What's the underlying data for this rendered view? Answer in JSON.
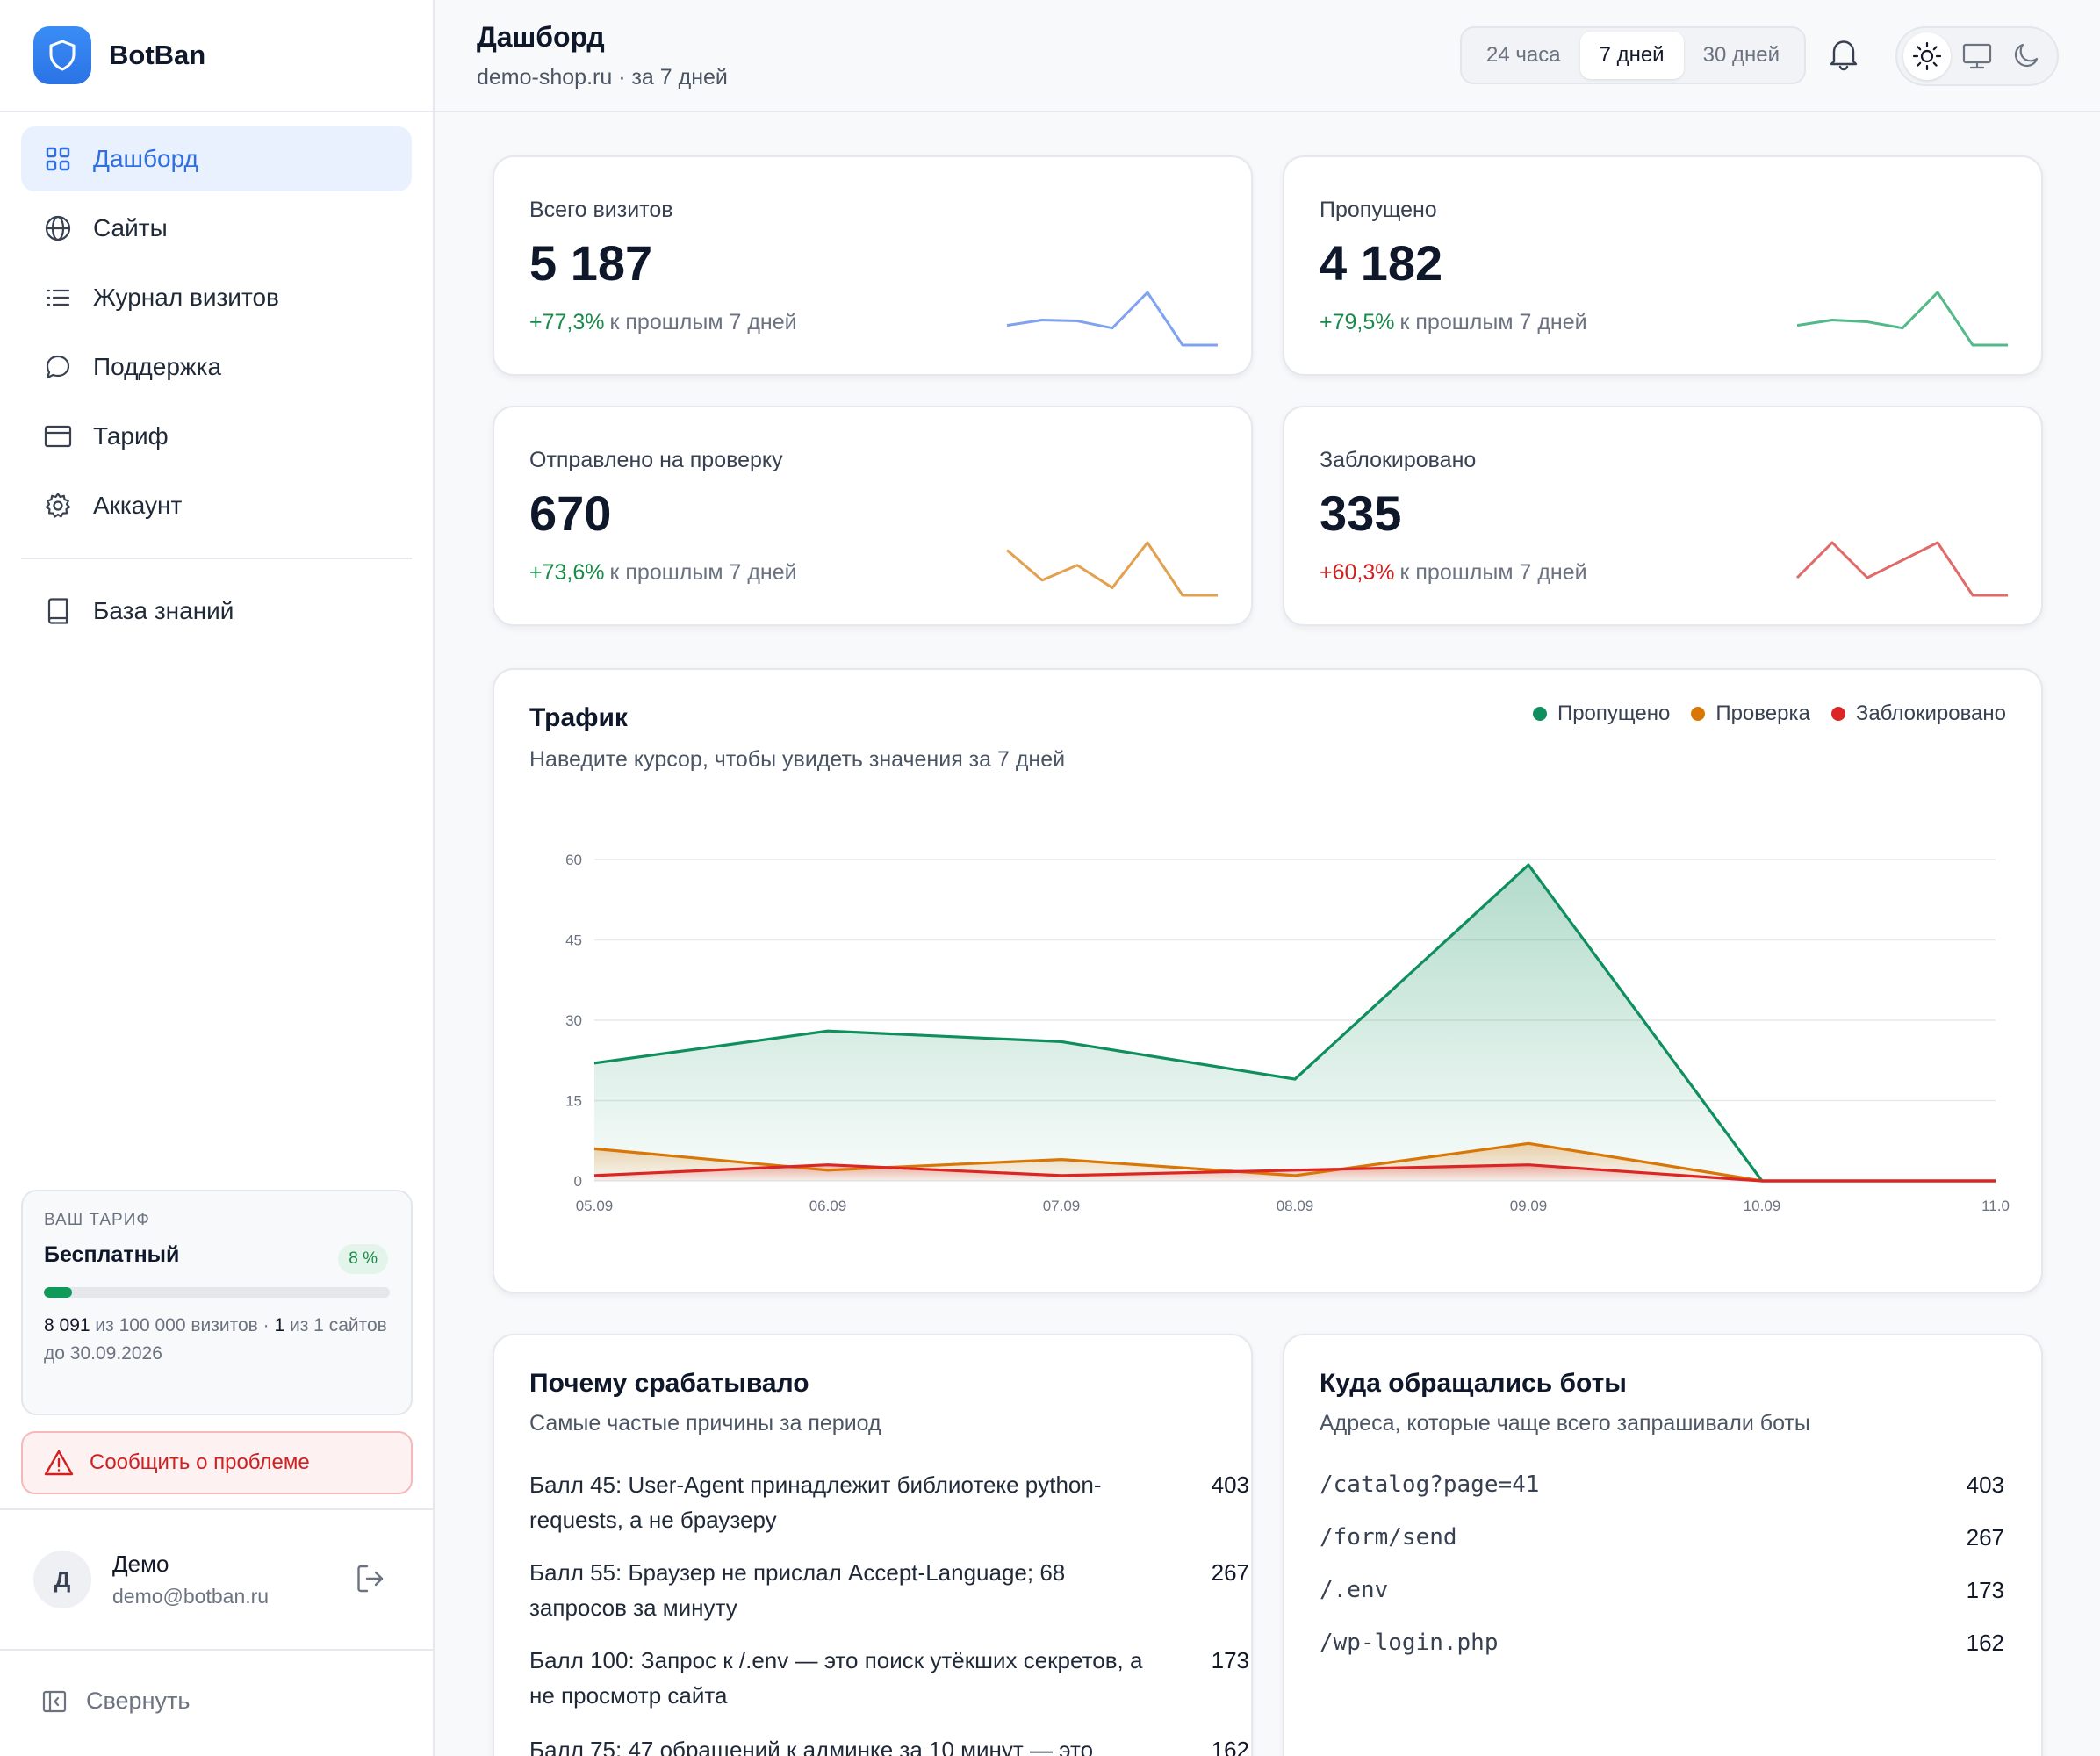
{
  "brand": {
    "name": "BotBan"
  },
  "nav": {
    "items": [
      {
        "label": "Дашборд",
        "icon": "grid-icon",
        "active": true
      },
      {
        "label": "Сайты",
        "icon": "globe-icon"
      },
      {
        "label": "Журнал визитов",
        "icon": "list-icon"
      },
      {
        "label": "Поддержка",
        "icon": "chat-icon"
      },
      {
        "label": "Тариф",
        "icon": "card-icon"
      },
      {
        "label": "Аккаунт",
        "icon": "gear-icon"
      }
    ],
    "knowledge": {
      "label": "База знаний",
      "icon": "book-icon"
    }
  },
  "plan": {
    "caption": "ВАШ ТАРИФ",
    "name": "Бесплатный",
    "badge": "8 %",
    "progress": 0.08,
    "used": "8 091",
    "used_suffix": " из 100 000 визитов · ",
    "sites_used": "1",
    "sites_suffix": " из 1 сайтов",
    "until": "до 30.09.2026"
  },
  "report": {
    "label": "Сообщить о проблеме"
  },
  "user": {
    "initial": "Д",
    "name": "Демо",
    "email": "demo@botban.ru"
  },
  "collapse": {
    "label": "Свернуть"
  },
  "header": {
    "title": "Дашборд",
    "subtitle": "demo-shop.ru · за 7 дней",
    "periods": [
      "24 часа",
      "7 дней",
      "30 дней"
    ],
    "active_period": "7 дней"
  },
  "kpis": [
    {
      "label": "Всего визитов",
      "value": "5 187",
      "delta": "+77,3%",
      "delta_text": "к прошлым 7 дней",
      "delta_color": "#1a8a4a",
      "spark_color": "#7fa3f0",
      "spark": [
        22,
        28,
        27,
        19,
        59,
        0,
        0
      ]
    },
    {
      "label": "Пропущено",
      "value": "4 182",
      "delta": "+79,5%",
      "delta_text": "к прошлым 7 дней",
      "delta_color": "#1a8a4a",
      "spark_color": "#52b98a",
      "spark": [
        22,
        28,
        26,
        19,
        59,
        0,
        0
      ]
    },
    {
      "label": "Отправлено на проверку",
      "value": "670",
      "delta": "+73,6%",
      "delta_text": "к прошлым 7 дней",
      "delta_color": "#1a8a4a",
      "spark_color": "#e3a04e",
      "spark": [
        6,
        2,
        4,
        1,
        7,
        0,
        0
      ]
    },
    {
      "label": "Заблокировано",
      "value": "335",
      "delta": "+60,3%",
      "delta_text": "к прошлым 7 дней",
      "delta_color": "#d02020",
      "spark_color": "#e06a6a",
      "spark": [
        1,
        3,
        1,
        2,
        3,
        0,
        0
      ]
    }
  ],
  "traffic": {
    "title": "Трафик",
    "subtitle": "Наведите курсор, чтобы увидеть значения за 7 дней"
  },
  "chart_data": {
    "type": "area",
    "x": [
      "05.09",
      "06.09",
      "07.09",
      "08.09",
      "09.09",
      "10.09",
      "11.0"
    ],
    "ylim": [
      0,
      60
    ],
    "yticks": [
      0,
      15,
      30,
      45,
      60
    ],
    "grid": true,
    "legend_position": "top-right",
    "series": [
      {
        "name": "Пропущено",
        "color": "#0f8f5e",
        "values": [
          22,
          28,
          26,
          19,
          59,
          0,
          0
        ]
      },
      {
        "name": "Проверка",
        "color": "#d97706",
        "values": [
          6,
          2,
          4,
          1,
          7,
          0,
          0
        ]
      },
      {
        "name": "Заблокировано",
        "color": "#dc2626",
        "values": [
          1,
          3,
          1,
          2,
          3,
          0,
          0
        ]
      }
    ]
  },
  "reasons": {
    "title": "Почему срабатывало",
    "subtitle": "Самые частые причины за период",
    "items": [
      {
        "text": "Балл 45: User-Agent принадлежит библиотеке python-requests, а не браузеру",
        "count": "403"
      },
      {
        "text": "Балл 55: Браузер не прислал Accept-Language; 68 запросов за минуту",
        "count": "267"
      },
      {
        "text": "Балл 100: Запрос к /.env — это поиск утёкших секретов, а не просмотр сайта",
        "count": "173"
      },
      {
        "text": "Балл 75: 47 обращений к админке за 10 минут — это",
        "count": "162"
      }
    ]
  },
  "paths": {
    "title": "Куда обращались боты",
    "subtitle": "Адреса, которые чаще всего запрашивали боты",
    "items": [
      {
        "path": "/catalog?page=41",
        "count": "403"
      },
      {
        "path": "/form/send",
        "count": "267"
      },
      {
        "path": "/.env",
        "count": "173"
      },
      {
        "path": "/wp-login.php",
        "count": "162"
      }
    ]
  }
}
